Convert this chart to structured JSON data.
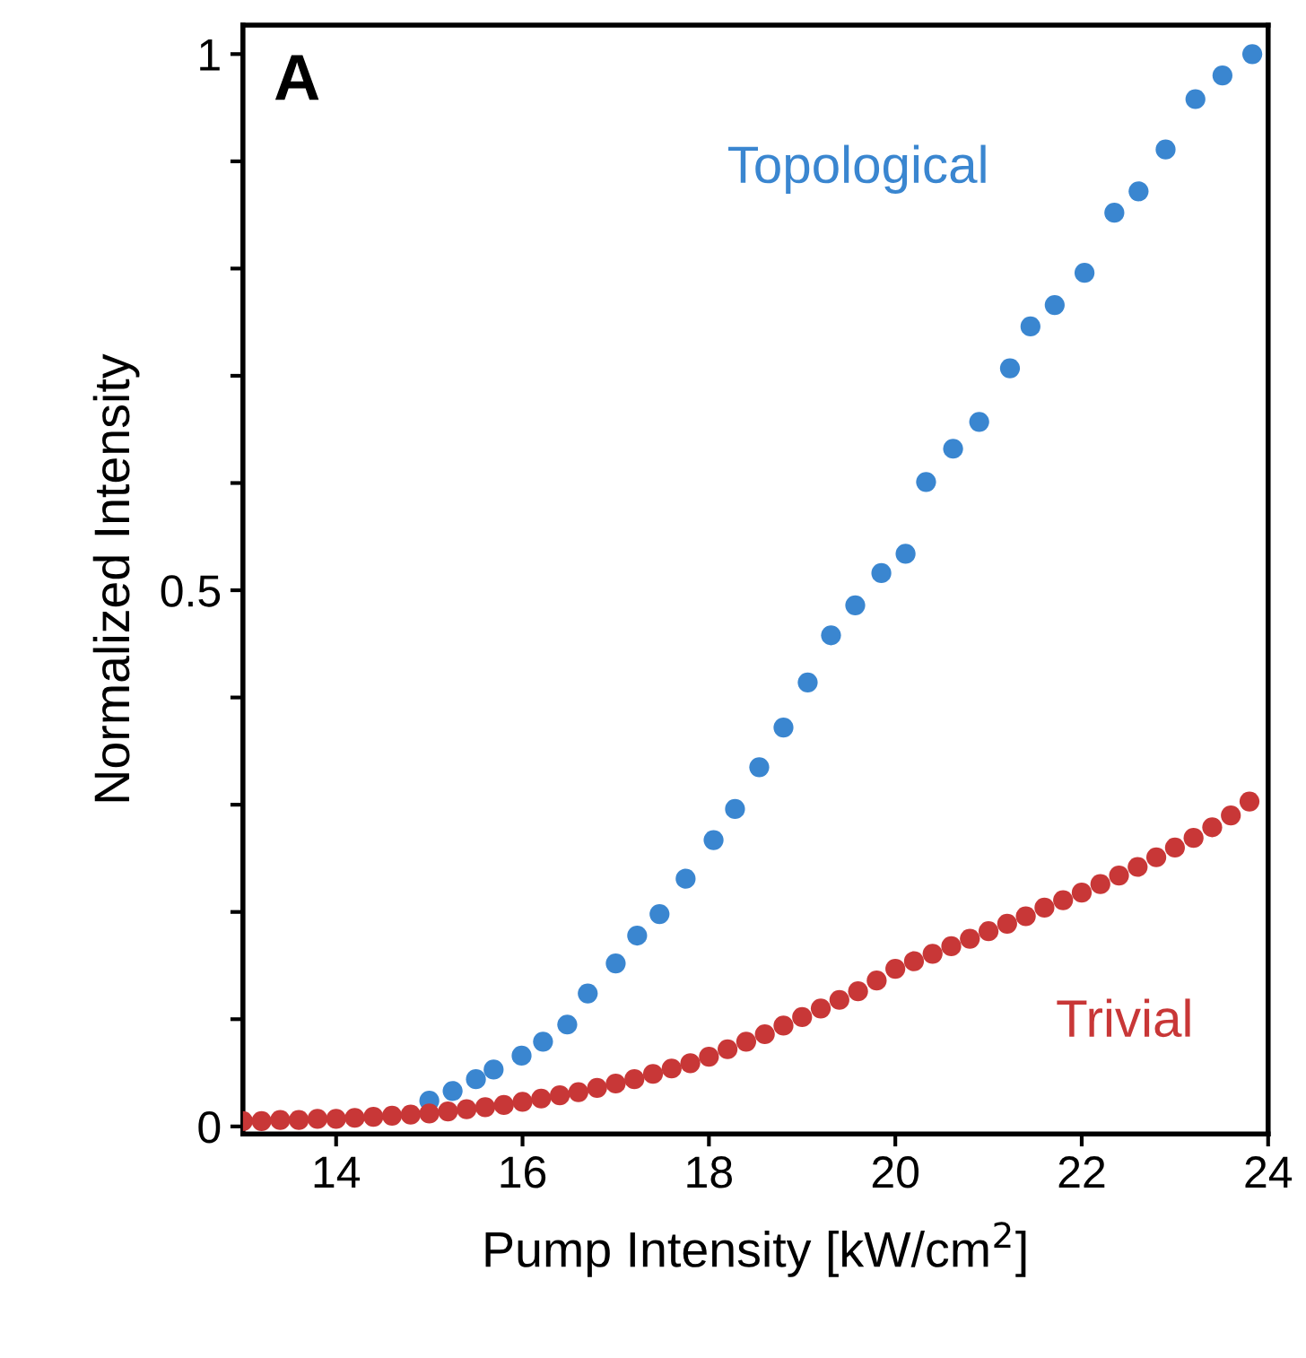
{
  "chart_data": {
    "type": "scatter",
    "xlabel": "Pump Intensity [kW/cm$^{2}$]",
    "ylabel": "Normalized Intensity",
    "annotations": [
      "A"
    ],
    "xlim": [
      13,
      24
    ],
    "xticks": [
      14,
      16,
      18,
      20,
      22,
      24
    ],
    "ylim": [
      -0.007,
      1.027
    ],
    "yticks": [
      0,
      {
        "value": 0.1,
        "label": null
      },
      {
        "value": 0.2,
        "label": null
      },
      {
        "value": 0.3,
        "label": null
      },
      {
        "value": 0.4,
        "label": null
      },
      0.5,
      {
        "value": 0.6,
        "label": null
      },
      {
        "value": 0.7,
        "label": null
      },
      {
        "value": 0.8,
        "label": null
      },
      {
        "value": 0.9,
        "label": null
      },
      1
    ],
    "grid": false,
    "legend": false,
    "marker": "circle",
    "series": [
      {
        "name": "Topological",
        "color": "#3a86d0",
        "x": [
          15.0,
          15.25,
          15.5,
          15.69,
          15.99,
          16.22,
          16.48,
          16.7,
          17.0,
          17.23,
          17.47,
          17.75,
          18.05,
          18.28,
          18.54,
          18.8,
          19.06,
          19.31,
          19.57,
          19.85,
          20.11,
          20.33,
          20.62,
          20.9,
          21.23,
          21.45,
          21.71,
          22.03,
          22.35,
          22.61,
          22.9,
          23.22,
          23.51,
          23.83
        ],
        "values": [
          0.024,
          0.033,
          0.044,
          0.053,
          0.066,
          0.079,
          0.095,
          0.124,
          0.152,
          0.178,
          0.198,
          0.231,
          0.267,
          0.296,
          0.335,
          0.372,
          0.414,
          0.458,
          0.486,
          0.516,
          0.534,
          0.601,
          0.632,
          0.657,
          0.707,
          0.746,
          0.766,
          0.796,
          0.852,
          0.872,
          0.911,
          0.958,
          0.98,
          1.0
        ]
      },
      {
        "name": "Trivial",
        "color": "#c83737",
        "x": [
          13.0,
          13.2,
          13.4,
          13.6,
          13.8,
          14.0,
          14.2,
          14.4,
          14.6,
          14.8,
          15.0,
          15.2,
          15.4,
          15.6,
          15.8,
          16.0,
          16.2,
          16.4,
          16.6,
          16.8,
          17.0,
          17.2,
          17.4,
          17.6,
          17.8,
          18.0,
          18.2,
          18.4,
          18.6,
          18.8,
          19.0,
          19.2,
          19.4,
          19.6,
          19.8,
          20.0,
          20.2,
          20.4,
          20.6,
          20.8,
          21.0,
          21.2,
          21.4,
          21.6,
          21.8,
          22.0,
          22.2,
          22.4,
          22.6,
          22.8,
          23.0,
          23.2,
          23.4,
          23.6,
          23.8
        ],
        "values": [
          0.005,
          0.005,
          0.006,
          0.006,
          0.007,
          0.007,
          0.008,
          0.009,
          0.01,
          0.011,
          0.012,
          0.014,
          0.016,
          0.018,
          0.02,
          0.023,
          0.026,
          0.029,
          0.032,
          0.036,
          0.04,
          0.044,
          0.049,
          0.054,
          0.059,
          0.065,
          0.072,
          0.079,
          0.086,
          0.094,
          0.102,
          0.11,
          0.118,
          0.126,
          0.136,
          0.147,
          0.154,
          0.161,
          0.168,
          0.175,
          0.182,
          0.189,
          0.196,
          0.204,
          0.211,
          0.218,
          0.226,
          0.234,
          0.242,
          0.251,
          0.26,
          0.269,
          0.279,
          0.29,
          0.303
        ]
      }
    ]
  }
}
